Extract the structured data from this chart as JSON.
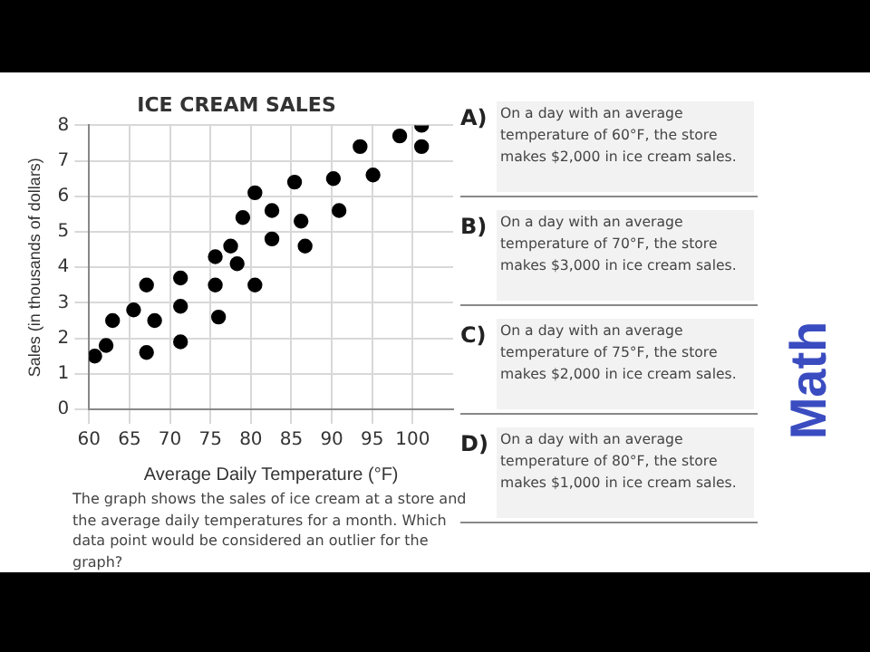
{
  "chart_data": {
    "type": "scatter",
    "title": "ICE CREAM SALES",
    "xlabel": "Average Daily Temperature (°F)",
    "ylabel": "Sales (in thousands of dollars)",
    "x": [
      60.7,
      62.1,
      62.9,
      65.5,
      67.1,
      67.1,
      68.1,
      71.3,
      71.3,
      71.3,
      75.6,
      75.6,
      76.0,
      77.5,
      78.3,
      79.0,
      80.5,
      80.5,
      82.6,
      82.6,
      85.4,
      86.2,
      86.7,
      90.2,
      90.9,
      93.5,
      95.1,
      98.4,
      101.1,
      101.1
    ],
    "series": [
      {
        "color": "#000000",
        "values": [
          1.5,
          1.8,
          2.5,
          2.8,
          3.5,
          1.6,
          2.5,
          3.7,
          2.9,
          1.9,
          4.3,
          3.5,
          2.6,
          4.6,
          4.1,
          5.4,
          6.1,
          3.5,
          5.6,
          4.8,
          6.4,
          5.3,
          4.6,
          6.5,
          5.6,
          7.4,
          6.6,
          7.7,
          8.0,
          7.4
        ]
      }
    ],
    "xlim": [
      60,
      105
    ],
    "xticks": [
      60,
      65,
      70,
      75,
      80,
      85,
      90,
      95,
      100
    ],
    "ylim": [
      0,
      8
    ],
    "yticks": [
      0,
      1,
      2,
      3,
      4,
      5,
      6,
      7,
      8
    ],
    "grid": true,
    "legend": false,
    "marker": "circle",
    "annotations": [
      "The graph shows the sales of ice cream at a store and the average daily temperatures for a month. Which data point would be considered an outlier for the graph?",
      "A)",
      "On a day with an average temperature of 60°F, the store makes $2,000 in ice cream sales.",
      "B)",
      "On a day with an average temperature of 70°F, the store makes $3,000 in ice cream sales.",
      "C)",
      "On a day with an average temperature of 75°F, the store makes $2,000 in ice cream sales.",
      "D)",
      "On a day with an average temperature of 80°F, the store makes $1,000 in ice cream sales.",
      "Math"
    ]
  }
}
